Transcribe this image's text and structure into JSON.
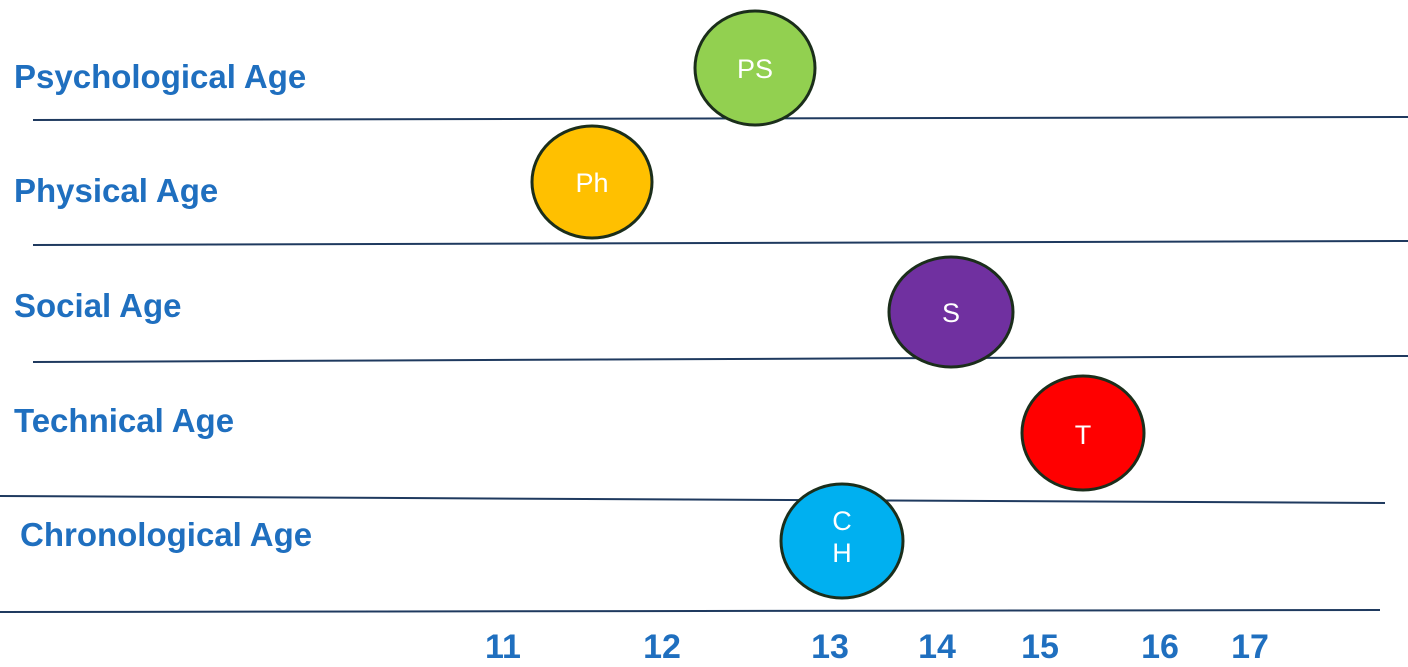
{
  "rows": [
    {
      "label": "Psychological Age",
      "marker": {
        "text": "PS",
        "color": "#92d050"
      }
    },
    {
      "label": "Physical Age",
      "marker": {
        "text": "Ph",
        "color": "#ffc000"
      }
    },
    {
      "label": "Social Age",
      "marker": {
        "text": "S",
        "color": "#7030a0"
      }
    },
    {
      "label": "Technical Age",
      "marker": {
        "text": "T",
        "color": "#ff0000"
      }
    },
    {
      "label": "Chronological Age",
      "marker": {
        "text": "C\nH",
        "color": "#00b0f0"
      }
    }
  ],
  "axis_ticks": [
    "11",
    "12",
    "13",
    "14",
    "15",
    "16",
    "17"
  ],
  "colors": {
    "label": "#1f6fbf",
    "line": "#1f3a5f",
    "marker_outline": "#1b2e1b",
    "marker_text": "#ffffff"
  }
}
